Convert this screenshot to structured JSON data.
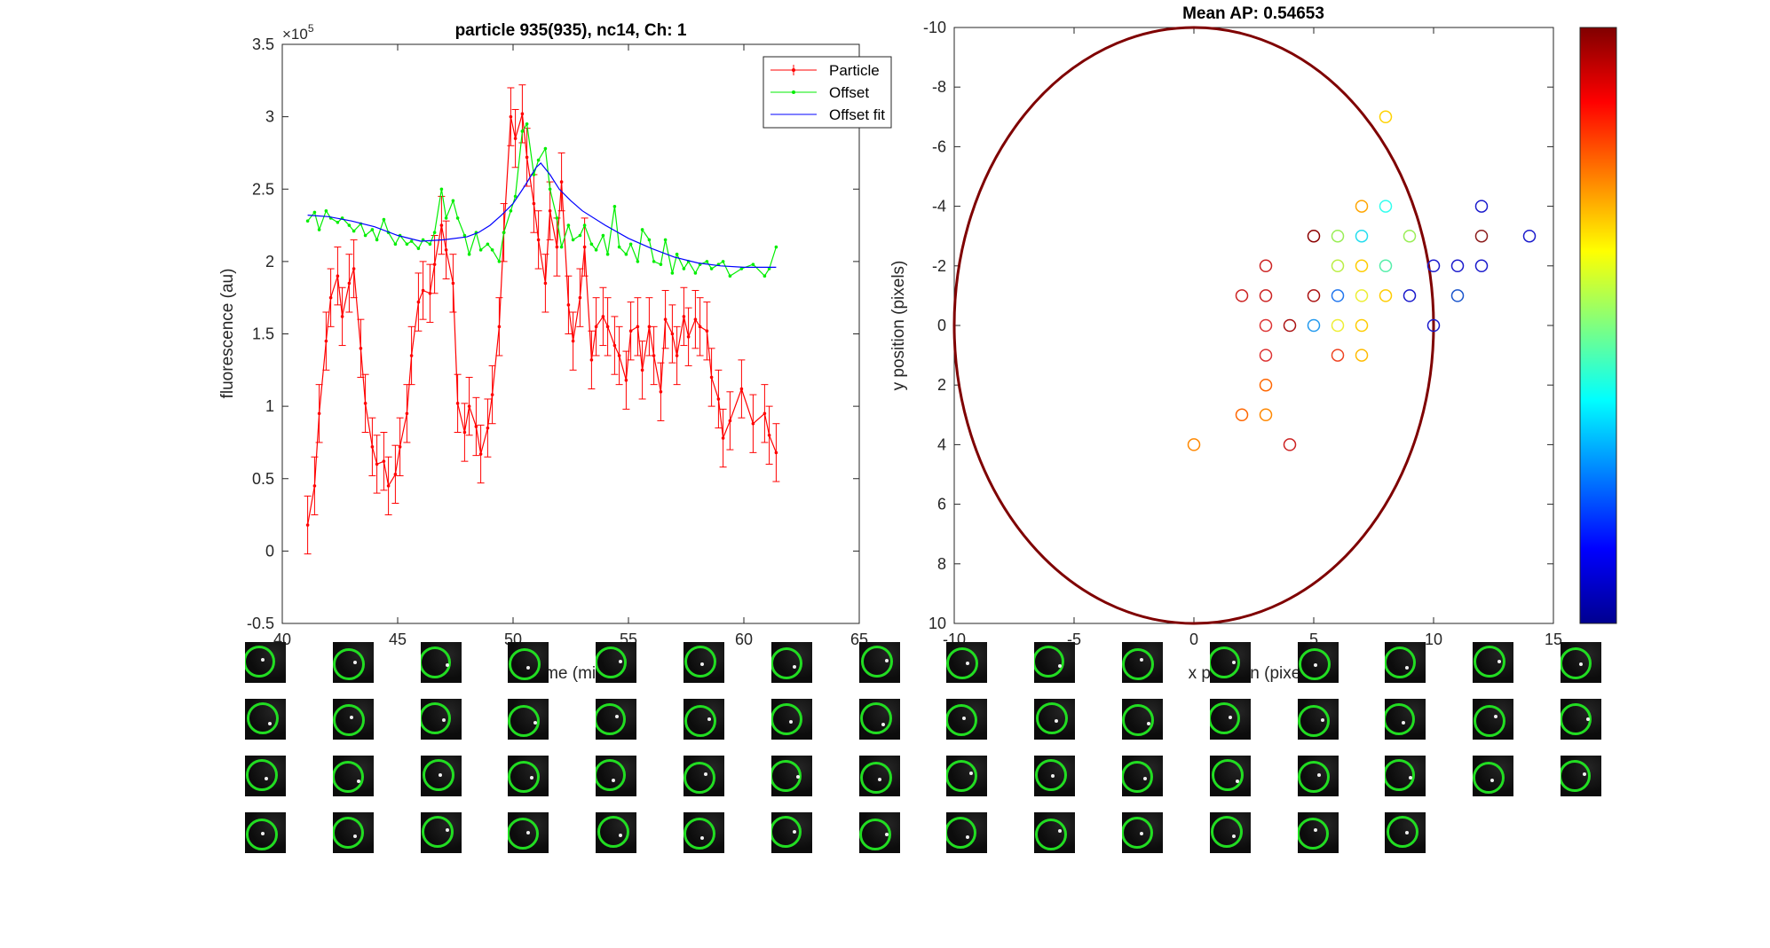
{
  "colors": {
    "particle": "#ff0000",
    "offset": "#00ee00",
    "offset_fit": "#0000ff",
    "ellipse": "#7f0000",
    "ring": "#22dd22"
  },
  "chart_data": [
    {
      "type": "line",
      "title": "particle 935(935), nc14, Ch: 1",
      "xlabel": "Time (min)",
      "ylabel": "fluorescence (au)",
      "y_exponent_label": "×10",
      "y_exponent_power": "5",
      "xlim": [
        40,
        65
      ],
      "ylim": [
        -0.5,
        3.5
      ],
      "xticks": [
        "40",
        "45",
        "50",
        "55",
        "60",
        "65"
      ],
      "yticks": [
        "-0.5",
        "0",
        "0.5",
        "1",
        "1.5",
        "2",
        "2.5",
        "3",
        "3.5"
      ],
      "legend_position": "top-right",
      "series": [
        {
          "name": "Particle",
          "x": [
            41.1,
            41.4,
            41.6,
            41.9,
            42.1,
            42.4,
            42.6,
            42.9,
            43.1,
            43.4,
            43.6,
            43.9,
            44.1,
            44.4,
            44.6,
            44.9,
            45.1,
            45.4,
            45.6,
            45.9,
            46.1,
            46.4,
            46.6,
            46.9,
            47.1,
            47.4,
            47.6,
            47.9,
            48.1,
            48.4,
            48.6,
            48.9,
            49.1,
            49.4,
            49.6,
            49.9,
            50.1,
            50.4,
            50.6,
            50.9,
            51.1,
            51.4,
            51.6,
            51.9,
            52.1,
            52.4,
            52.6,
            52.9,
            53.1,
            53.4,
            53.6,
            53.9,
            54.1,
            54.4,
            54.6,
            54.9,
            55.1,
            55.4,
            55.6,
            55.9,
            56.1,
            56.4,
            56.6,
            56.9,
            57.1,
            57.4,
            57.6,
            57.9,
            58.1,
            58.4,
            58.6,
            58.9,
            59.1,
            59.4,
            59.9,
            60.4,
            60.9,
            61.1,
            61.4
          ],
          "values": [
            0.18,
            0.45,
            0.95,
            1.45,
            1.75,
            1.9,
            1.62,
            1.85,
            1.95,
            1.4,
            1.02,
            0.72,
            0.6,
            0.62,
            0.45,
            0.53,
            0.72,
            0.95,
            1.35,
            1.72,
            1.8,
            1.78,
            1.98,
            2.25,
            2.08,
            1.85,
            1.02,
            0.82,
            1.0,
            0.86,
            0.67,
            0.85,
            1.08,
            1.55,
            2.2,
            3.0,
            2.85,
            3.02,
            2.72,
            2.4,
            2.15,
            1.85,
            2.35,
            2.1,
            2.55,
            1.7,
            1.45,
            1.75,
            2.1,
            1.32,
            1.55,
            1.62,
            1.55,
            1.42,
            1.35,
            1.18,
            1.52,
            1.55,
            1.25,
            1.55,
            1.35,
            1.1,
            1.6,
            1.5,
            1.35,
            1.62,
            1.48,
            1.6,
            1.55,
            1.52,
            1.2,
            1.05,
            0.78,
            0.9,
            1.12,
            0.88,
            0.95,
            0.8,
            0.68
          ],
          "error": 0.2
        },
        {
          "name": "Offset",
          "x": [
            41.1,
            41.4,
            41.6,
            41.9,
            42.1,
            42.4,
            42.6,
            42.9,
            43.1,
            43.4,
            43.6,
            43.9,
            44.1,
            44.4,
            44.6,
            44.9,
            45.1,
            45.4,
            45.6,
            45.9,
            46.1,
            46.4,
            46.6,
            46.9,
            47.1,
            47.4,
            47.6,
            47.9,
            48.1,
            48.4,
            48.6,
            48.9,
            49.1,
            49.4,
            49.6,
            49.9,
            50.1,
            50.4,
            50.6,
            50.9,
            51.1,
            51.4,
            51.6,
            51.9,
            52.1,
            52.4,
            52.6,
            52.9,
            53.1,
            53.4,
            53.6,
            53.9,
            54.1,
            54.4,
            54.6,
            54.9,
            55.1,
            55.4,
            55.6,
            55.9,
            56.1,
            56.4,
            56.6,
            56.9,
            57.1,
            57.4,
            57.6,
            57.9,
            58.1,
            58.4,
            58.6,
            58.9,
            59.1,
            59.4,
            59.9,
            60.4,
            60.9,
            61.1,
            61.4
          ],
          "values": [
            2.28,
            2.34,
            2.22,
            2.35,
            2.3,
            2.27,
            2.3,
            2.25,
            2.21,
            2.26,
            2.18,
            2.22,
            2.15,
            2.29,
            2.2,
            2.12,
            2.18,
            2.12,
            2.14,
            2.09,
            2.15,
            2.12,
            2.2,
            2.5,
            2.3,
            2.42,
            2.3,
            2.18,
            2.05,
            2.2,
            2.08,
            2.12,
            2.08,
            2.0,
            2.2,
            2.35,
            2.45,
            2.9,
            2.95,
            2.6,
            2.7,
            2.78,
            2.5,
            2.3,
            2.1,
            2.25,
            2.15,
            2.18,
            2.25,
            2.12,
            2.08,
            2.18,
            2.05,
            2.38,
            2.1,
            2.05,
            2.12,
            2.0,
            2.22,
            2.15,
            2.0,
            1.98,
            2.15,
            1.92,
            2.05,
            1.95,
            2.0,
            1.92,
            1.98,
            2.0,
            1.95,
            1.98,
            2.0,
            1.9,
            1.95,
            1.98,
            1.9,
            1.95,
            2.1
          ]
        },
        {
          "name": "Offset fit",
          "x": [
            41.1,
            42.0,
            43.0,
            44.0,
            45.0,
            46.0,
            47.0,
            48.0,
            48.5,
            49.0,
            49.5,
            50.0,
            50.5,
            51.0,
            51.2,
            51.6,
            52.0,
            52.5,
            53.0,
            54.0,
            55.0,
            56.0,
            57.0,
            58.0,
            59.0,
            60.0,
            61.0,
            61.4
          ],
          "values": [
            2.32,
            2.31,
            2.28,
            2.24,
            2.18,
            2.14,
            2.15,
            2.17,
            2.2,
            2.25,
            2.32,
            2.4,
            2.52,
            2.65,
            2.68,
            2.6,
            2.5,
            2.42,
            2.35,
            2.25,
            2.16,
            2.09,
            2.03,
            1.99,
            1.97,
            1.96,
            1.96,
            1.96
          ]
        }
      ]
    },
    {
      "type": "scatter",
      "title": "Mean AP: 0.54653",
      "xlabel": "x position (pixels)",
      "ylabel": "y position (pixels)",
      "xlim": [
        -10,
        15
      ],
      "ylim": [
        -10,
        10
      ],
      "y_reversed": true,
      "xticks": [
        "-10",
        "-5",
        "0",
        "5",
        "10",
        "15"
      ],
      "yticks": [
        "-10",
        "-8",
        "-6",
        "-4",
        "-2",
        "0",
        "2",
        "4",
        "6",
        "8",
        "10"
      ],
      "ellipse": {
        "cx": 0,
        "cy": 0,
        "rx": 10,
        "ry": 10
      },
      "colorbar": "jet",
      "points": [
        {
          "x": 8,
          "y": -7,
          "color": "#ffd200"
        },
        {
          "x": 7,
          "y": -4,
          "color": "#ffa500"
        },
        {
          "x": 8,
          "y": -4,
          "color": "#33ffee"
        },
        {
          "x": 12,
          "y": -4,
          "color": "#1a1acc"
        },
        {
          "x": 5,
          "y": -3,
          "color": "#8b0000"
        },
        {
          "x": 6,
          "y": -3,
          "color": "#99ee55"
        },
        {
          "x": 7,
          "y": -3,
          "color": "#22ddee"
        },
        {
          "x": 9,
          "y": -3,
          "color": "#99ee55"
        },
        {
          "x": 12,
          "y": -3,
          "color": "#8b1a1a"
        },
        {
          "x": 14,
          "y": -3,
          "color": "#1a1acc"
        },
        {
          "x": 3,
          "y": -2,
          "color": "#cc2222"
        },
        {
          "x": 6,
          "y": -2,
          "color": "#bbee44"
        },
        {
          "x": 7,
          "y": -2,
          "color": "#ffcc00"
        },
        {
          "x": 8,
          "y": -2,
          "color": "#55eeaa"
        },
        {
          "x": 10,
          "y": -2,
          "color": "#1a1acc"
        },
        {
          "x": 11,
          "y": -2,
          "color": "#1a1acc"
        },
        {
          "x": 12,
          "y": -2,
          "color": "#1a1acc"
        },
        {
          "x": 2,
          "y": -1,
          "color": "#cc2222"
        },
        {
          "x": 3,
          "y": -1,
          "color": "#cc2222"
        },
        {
          "x": 5,
          "y": -1,
          "color": "#aa1111"
        },
        {
          "x": 6,
          "y": -1,
          "color": "#2277ee"
        },
        {
          "x": 7,
          "y": -1,
          "color": "#eeee33"
        },
        {
          "x": 8,
          "y": -1,
          "color": "#ffcc00"
        },
        {
          "x": 9,
          "y": -1,
          "color": "#1a1acc"
        },
        {
          "x": 11,
          "y": -1,
          "color": "#1a55cc"
        },
        {
          "x": 3,
          "y": 0,
          "color": "#dd3333"
        },
        {
          "x": 4,
          "y": 0,
          "color": "#aa1111"
        },
        {
          "x": 5,
          "y": 0,
          "color": "#2299ee"
        },
        {
          "x": 6,
          "y": 0,
          "color": "#eeee33"
        },
        {
          "x": 7,
          "y": 0,
          "color": "#ffcc00"
        },
        {
          "x": 10,
          "y": 0,
          "color": "#1a1acc"
        },
        {
          "x": 3,
          "y": 1,
          "color": "#dd3333"
        },
        {
          "x": 6,
          "y": 1,
          "color": "#ee4422"
        },
        {
          "x": 7,
          "y": 1,
          "color": "#ffbb00"
        },
        {
          "x": 3,
          "y": 2,
          "color": "#ff6600"
        },
        {
          "x": 2,
          "y": 3,
          "color": "#ff6600"
        },
        {
          "x": 3,
          "y": 3,
          "color": "#ff8800"
        },
        {
          "x": 4,
          "y": 4,
          "color": "#cc2222"
        },
        {
          "x": 0,
          "y": 4,
          "color": "#ff8800"
        }
      ]
    }
  ],
  "thumbnails": {
    "count": 62,
    "per_row": 16
  }
}
